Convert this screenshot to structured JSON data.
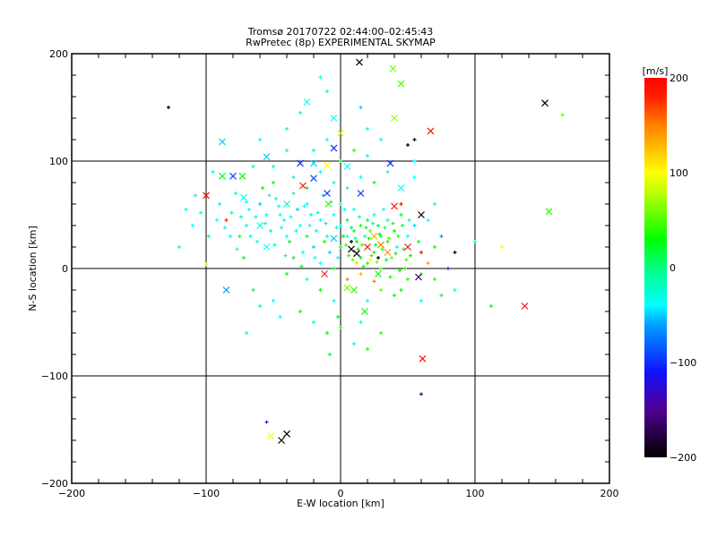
{
  "chart_data": {
    "type": "scatter",
    "title": "Tromsø 20170722 02:44:00–02:45:43",
    "subtitle": "RwPretec (8p) EXPERIMENTAL SKYMAP",
    "xlabel": "E-W location [km]",
    "ylabel": "N-S location [km]",
    "xlim": [
      -200,
      200
    ],
    "ylim": [
      -200,
      200
    ],
    "xticks": [
      "−200",
      "−100",
      "0",
      "100",
      "200"
    ],
    "yticks": [
      "−200",
      "−100",
      "0",
      "100",
      "200"
    ],
    "grid": true,
    "colorbar": {
      "label": "[m/s]",
      "range": [
        -200,
        200
      ],
      "ticks": [
        "200",
        "100",
        "0",
        "−100",
        "−200"
      ],
      "stops": [
        [
          -200,
          "#000000"
        ],
        [
          -150,
          "#500090"
        ],
        [
          -110,
          "#1010ff"
        ],
        [
          -60,
          "#00a0ff"
        ],
        [
          -40,
          "#00ffff"
        ],
        [
          0,
          "#00ff80"
        ],
        [
          30,
          "#00ff00"
        ],
        [
          80,
          "#c0ff00"
        ],
        [
          100,
          "#ffff00"
        ],
        [
          150,
          "#ff8000"
        ],
        [
          180,
          "#ff2000"
        ],
        [
          200,
          "#ff0000"
        ]
      ]
    },
    "series_note": "points are [E-W km, N-S km, velocity m/s]",
    "crosses": [
      [
        -100,
        68,
        190
      ],
      [
        -88,
        118,
        -50
      ],
      [
        -88,
        86,
        20
      ],
      [
        -80,
        86,
        -90
      ],
      [
        -73,
        86,
        30
      ],
      [
        -72,
        66,
        -40
      ],
      [
        -55,
        104,
        -50
      ],
      [
        -30,
        98,
        -100
      ],
      [
        -28,
        77,
        180
      ],
      [
        -5,
        112,
        -100
      ],
      [
        0,
        126,
        90
      ],
      [
        14,
        192,
        -200
      ],
      [
        39,
        186,
        60
      ],
      [
        45,
        172,
        50
      ],
      [
        67,
        128,
        190
      ],
      [
        152,
        154,
        -200
      ],
      [
        60,
        50,
        -200
      ],
      [
        155,
        53,
        40
      ],
      [
        -40,
        -154,
        -200
      ],
      [
        -44,
        -160,
        -200
      ],
      [
        -52,
        -156,
        100
      ],
      [
        137,
        -35,
        190
      ],
      [
        61,
        -84,
        190
      ],
      [
        18,
        -40,
        30
      ],
      [
        58,
        -8,
        -160
      ],
      [
        12,
        14,
        -200
      ],
      [
        8,
        18,
        -200
      ],
      [
        -12,
        -5,
        180
      ],
      [
        40,
        58,
        180
      ],
      [
        30,
        22,
        150
      ],
      [
        -20,
        84,
        -90
      ],
      [
        -10,
        70,
        -100
      ],
      [
        -9,
        60,
        40
      ],
      [
        -5,
        28,
        -50
      ],
      [
        5,
        -18,
        60
      ],
      [
        20,
        20,
        190
      ],
      [
        35,
        15,
        140
      ],
      [
        50,
        20,
        190
      ],
      [
        25,
        30,
        130
      ],
      [
        -55,
        20,
        -40
      ],
      [
        -85,
        -20,
        -60
      ],
      [
        28,
        -5,
        30
      ],
      [
        10,
        -20,
        40
      ],
      [
        -10,
        96,
        100
      ],
      [
        -20,
        98,
        -50
      ],
      [
        37,
        98,
        -100
      ],
      [
        40,
        140,
        70
      ],
      [
        -5,
        140,
        -40
      ],
      [
        -25,
        155,
        -40
      ],
      [
        5,
        95,
        -40
      ],
      [
        -60,
        40,
        -30
      ],
      [
        15,
        70,
        -100
      ],
      [
        45,
        75,
        -40
      ],
      [
        -40,
        60,
        -20
      ]
    ],
    "dots": [
      [
        -128,
        150,
        -200
      ],
      [
        -100,
        4,
        80
      ],
      [
        120,
        20,
        100
      ],
      [
        165,
        143,
        60
      ],
      [
        112,
        -35,
        20
      ],
      [
        60,
        -117,
        -150
      ],
      [
        -55,
        -143,
        -100
      ],
      [
        -8,
        -80,
        20
      ],
      [
        85,
        15,
        -200
      ],
      [
        80,
        0,
        -100
      ],
      [
        100,
        25,
        -30
      ],
      [
        -85,
        45,
        180
      ],
      [
        -120,
        20,
        -20
      ],
      [
        -110,
        40,
        -40
      ],
      [
        -75,
        30,
        20
      ],
      [
        -65,
        -20,
        10
      ],
      [
        -50,
        -30,
        -40
      ],
      [
        -30,
        -40,
        20
      ],
      [
        -20,
        -50,
        -20
      ],
      [
        -10,
        -60,
        30
      ],
      [
        0,
        -55,
        40
      ],
      [
        15,
        -50,
        -30
      ],
      [
        30,
        -60,
        40
      ],
      [
        45,
        -20,
        30
      ],
      [
        60,
        -30,
        -40
      ],
      [
        70,
        -10,
        40
      ],
      [
        75,
        30,
        -60
      ],
      [
        70,
        60,
        -30
      ],
      [
        55,
        100,
        -40
      ],
      [
        30,
        120,
        -30
      ],
      [
        15,
        150,
        -50
      ],
      [
        -10,
        165,
        -30
      ],
      [
        -40,
        130,
        -30
      ],
      [
        -60,
        120,
        -40
      ],
      [
        -95,
        90,
        -30
      ],
      [
        -90,
        60,
        -20
      ],
      [
        -70,
        40,
        -40
      ],
      [
        -60,
        60,
        -50
      ],
      [
        -50,
        80,
        20
      ],
      [
        -45,
        50,
        -30
      ],
      [
        -40,
        30,
        -40
      ],
      [
        -35,
        10,
        30
      ],
      [
        -30,
        40,
        -40
      ],
      [
        -25,
        60,
        -30
      ],
      [
        -20,
        20,
        -50
      ],
      [
        -15,
        45,
        -40
      ],
      [
        -10,
        30,
        -30
      ],
      [
        -5,
        50,
        -40
      ],
      [
        0,
        40,
        -20
      ],
      [
        0,
        20,
        10
      ],
      [
        0,
        60,
        -40
      ],
      [
        5,
        30,
        -30
      ],
      [
        5,
        45,
        20
      ],
      [
        10,
        35,
        10
      ],
      [
        10,
        55,
        -40
      ],
      [
        12,
        25,
        30
      ],
      [
        15,
        40,
        40
      ],
      [
        15,
        10,
        20
      ],
      [
        18,
        30,
        -20
      ],
      [
        20,
        45,
        10
      ],
      [
        20,
        5,
        40
      ],
      [
        22,
        35,
        60
      ],
      [
        25,
        15,
        30
      ],
      [
        25,
        50,
        -30
      ],
      [
        28,
        40,
        20
      ],
      [
        30,
        0,
        50
      ],
      [
        30,
        30,
        10
      ],
      [
        32,
        55,
        -40
      ],
      [
        35,
        25,
        40
      ],
      [
        35,
        45,
        -20
      ],
      [
        38,
        10,
        60
      ],
      [
        40,
        35,
        30
      ],
      [
        42,
        20,
        -30
      ],
      [
        45,
        50,
        20
      ],
      [
        48,
        0,
        40
      ],
      [
        50,
        30,
        -40
      ],
      [
        52,
        12,
        30
      ],
      [
        55,
        40,
        -50
      ],
      [
        58,
        25,
        20
      ],
      [
        60,
        -5,
        50
      ],
      [
        -2,
        10,
        -40
      ],
      [
        -5,
        0,
        20
      ],
      [
        -8,
        15,
        -50
      ],
      [
        -12,
        25,
        30
      ],
      [
        -15,
        5,
        -40
      ],
      [
        -18,
        35,
        -30
      ],
      [
        -22,
        50,
        -20
      ],
      [
        -25,
        30,
        10
      ],
      [
        -28,
        15,
        -40
      ],
      [
        -32,
        55,
        -50
      ],
      [
        -35,
        70,
        -30
      ],
      [
        -38,
        25,
        20
      ],
      [
        -42,
        45,
        -40
      ],
      [
        -48,
        65,
        -30
      ],
      [
        -52,
        35,
        -20
      ],
      [
        -55,
        50,
        -40
      ],
      [
        -58,
        75,
        30
      ],
      [
        -62,
        25,
        -30
      ],
      [
        -68,
        55,
        -40
      ],
      [
        -72,
        10,
        20
      ],
      [
        -78,
        70,
        -30
      ],
      [
        -82,
        30,
        -40
      ],
      [
        -5,
        80,
        -30
      ],
      [
        5,
        75,
        -20
      ],
      [
        15,
        85,
        -40
      ],
      [
        25,
        80,
        20
      ],
      [
        35,
        90,
        -30
      ],
      [
        -15,
        90,
        -40
      ],
      [
        -25,
        75,
        10
      ],
      [
        -35,
        85,
        -30
      ],
      [
        0,
        100,
        20
      ],
      [
        10,
        110,
        40
      ],
      [
        20,
        105,
        -30
      ],
      [
        -20,
        110,
        -20
      ],
      [
        2,
        30,
        30
      ],
      [
        4,
        22,
        50
      ],
      [
        6,
        12,
        40
      ],
      [
        8,
        38,
        20
      ],
      [
        9,
        8,
        60
      ],
      [
        11,
        28,
        -10
      ],
      [
        13,
        18,
        30
      ],
      [
        14,
        48,
        -20
      ],
      [
        16,
        22,
        50
      ],
      [
        17,
        2,
        40
      ],
      [
        19,
        38,
        20
      ],
      [
        21,
        28,
        30
      ],
      [
        23,
        12,
        40
      ],
      [
        24,
        42,
        -20
      ],
      [
        26,
        22,
        20
      ],
      [
        27,
        6,
        60
      ],
      [
        29,
        32,
        30
      ],
      [
        31,
        18,
        40
      ],
      [
        33,
        38,
        -10
      ],
      [
        34,
        8,
        20
      ],
      [
        36,
        28,
        50
      ],
      [
        37,
        -8,
        40
      ],
      [
        39,
        42,
        10
      ],
      [
        41,
        14,
        30
      ],
      [
        43,
        30,
        40
      ],
      [
        44,
        -2,
        30
      ],
      [
        46,
        40,
        10
      ],
      [
        47,
        18,
        20
      ],
      [
        49,
        8,
        50
      ],
      [
        51,
        45,
        -20
      ],
      [
        3,
        55,
        -40
      ],
      [
        -3,
        38,
        -30
      ],
      [
        -7,
        62,
        -40
      ],
      [
        -11,
        42,
        -20
      ],
      [
        -13,
        68,
        -50
      ],
      [
        -17,
        52,
        -30
      ],
      [
        -19,
        10,
        -40
      ],
      [
        -23,
        40,
        -30
      ],
      [
        -27,
        58,
        -40
      ],
      [
        -29,
        2,
        20
      ],
      [
        -33,
        35,
        -30
      ],
      [
        -37,
        48,
        -40
      ],
      [
        -41,
        12,
        -20
      ],
      [
        -44,
        38,
        -30
      ],
      [
        -46,
        58,
        -40
      ],
      [
        -49,
        22,
        -20
      ],
      [
        -53,
        68,
        -30
      ],
      [
        -56,
        42,
        -40
      ],
      [
        -63,
        48,
        -30
      ],
      [
        -67,
        30,
        -20
      ],
      [
        -70,
        62,
        -40
      ],
      [
        -74,
        48,
        -30
      ],
      [
        -77,
        18,
        -40
      ],
      [
        -81,
        52,
        -20
      ],
      [
        -86,
        38,
        -30
      ],
      [
        -92,
        45,
        -40
      ],
      [
        -98,
        30,
        -20
      ],
      [
        -104,
        52,
        -30
      ],
      [
        -108,
        68,
        -30
      ],
      [
        -115,
        55,
        -40
      ],
      [
        30,
        -20,
        60
      ],
      [
        40,
        -25,
        30
      ],
      [
        20,
        -30,
        -40
      ],
      [
        50,
        -10,
        40
      ],
      [
        65,
        5,
        140
      ],
      [
        60,
        15,
        190
      ],
      [
        70,
        20,
        20
      ],
      [
        65,
        45,
        -40
      ],
      [
        75,
        -25,
        20
      ],
      [
        85,
        -20,
        -30
      ],
      [
        -5,
        -30,
        -40
      ],
      [
        -15,
        -20,
        30
      ],
      [
        -25,
        -10,
        -30
      ],
      [
        -40,
        -5,
        20
      ],
      [
        -45,
        -45,
        -40
      ],
      [
        -60,
        -35,
        -20
      ],
      [
        -70,
        -60,
        -30
      ],
      [
        -2,
        -45,
        20
      ],
      [
        10,
        -70,
        -30
      ],
      [
        20,
        -75,
        40
      ],
      [
        5,
        -10,
        150
      ],
      [
        15,
        -5,
        130
      ],
      [
        25,
        -12,
        150
      ],
      [
        12,
        5,
        120
      ],
      [
        22,
        8,
        100
      ],
      [
        8,
        25,
        -200
      ],
      [
        28,
        10,
        -200
      ],
      [
        45,
        60,
        190
      ],
      [
        55,
        85,
        -40
      ],
      [
        20,
        130,
        -40
      ],
      [
        -30,
        145,
        -30
      ],
      [
        -10,
        120,
        -40
      ],
      [
        50,
        115,
        -200
      ],
      [
        55,
        120,
        -200
      ],
      [
        -40,
        110,
        -30
      ],
      [
        -50,
        95,
        -30
      ],
      [
        -65,
        95,
        -20
      ],
      [
        -15,
        178,
        -30
      ]
    ]
  }
}
